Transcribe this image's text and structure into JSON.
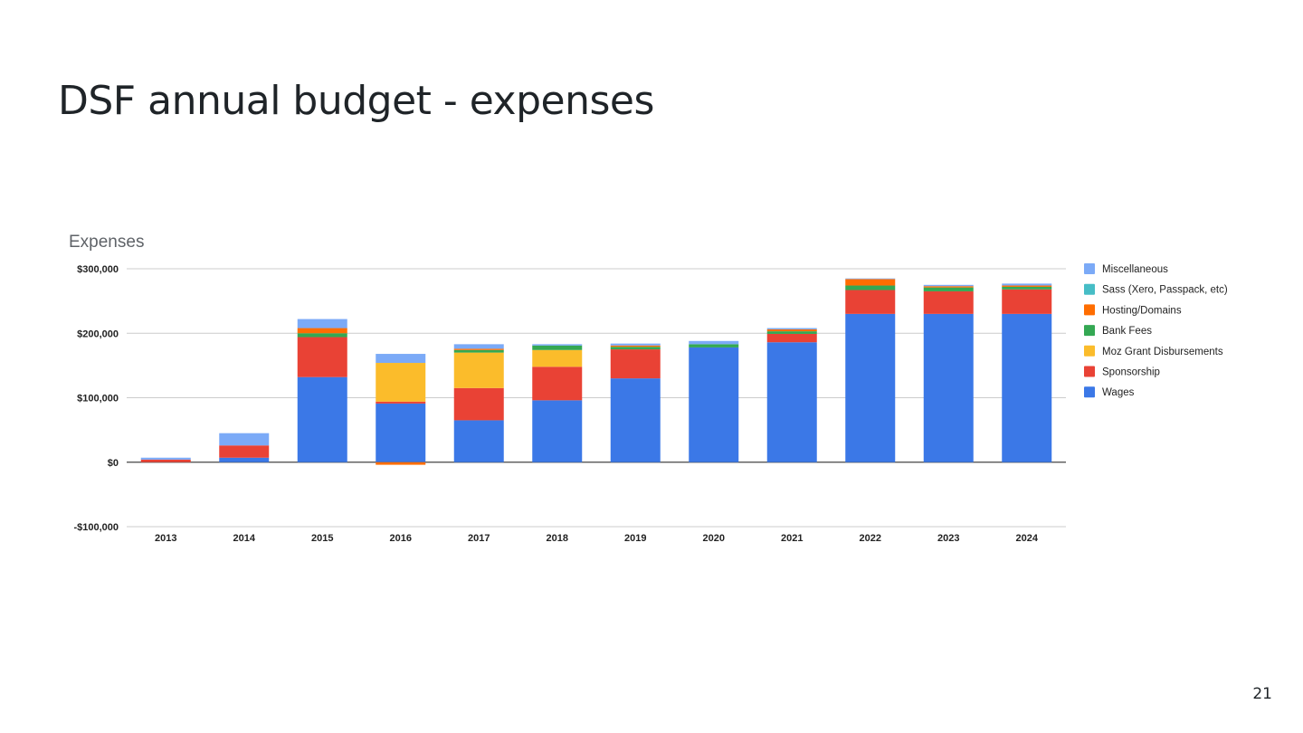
{
  "slide": {
    "title": "DSF annual budget - expenses",
    "page_number": "21"
  },
  "chart_data": {
    "type": "bar",
    "stacked": true,
    "title": "Expenses",
    "xlabel": "",
    "ylabel": "",
    "ylim": [
      -100000,
      300000
    ],
    "yticks": [
      300000,
      200000,
      100000,
      0,
      -100000
    ],
    "ytick_labels": [
      "$300,000",
      "$200,000",
      "$100,000",
      "$0",
      "-$100,000"
    ],
    "grid": true,
    "legend_position": "right",
    "categories": [
      "2013",
      "2014",
      "2015",
      "2016",
      "2017",
      "2018",
      "2019",
      "2020",
      "2021",
      "2022",
      "2023",
      "2024"
    ],
    "series": [
      {
        "name": "Wages",
        "color": "#3b78e7",
        "values": [
          0,
          7000,
          132000,
          91000,
          65000,
          96000,
          130000,
          178000,
          186000,
          230000,
          230000,
          230000
        ]
      },
      {
        "name": "Sponsorship",
        "color": "#e94235",
        "values": [
          4000,
          19000,
          62000,
          3000,
          50000,
          52000,
          45000,
          0,
          13000,
          37000,
          35000,
          38000
        ]
      },
      {
        "name": "Moz Grant Disbursements",
        "color": "#fbbc2b",
        "values": [
          0,
          0,
          0,
          60000,
          55000,
          26000,
          0,
          0,
          0,
          0,
          0,
          0
        ]
      },
      {
        "name": "Bank Fees",
        "color": "#34a853",
        "values": [
          0,
          0,
          6000,
          0,
          4000,
          7000,
          4000,
          5000,
          4000,
          7000,
          6000,
          4000
        ]
      },
      {
        "name": "Hosting/Domains",
        "color": "#ff6d01",
        "values": [
          0,
          0,
          8000,
          -4000,
          2000,
          0,
          2000,
          0,
          3000,
          10000,
          2000,
          2000
        ]
      },
      {
        "name": "Sass (Xero, Passpack, etc)",
        "color": "#46bdc6",
        "values": [
          0,
          0,
          0,
          0,
          0,
          0,
          0,
          0,
          0,
          0,
          0,
          0
        ]
      },
      {
        "name": "Miscellaneous",
        "color": "#7baaf7",
        "values": [
          3000,
          19000,
          14000,
          14000,
          7000,
          2000,
          3000,
          5000,
          2000,
          1000,
          2000,
          3000
        ]
      }
    ]
  }
}
